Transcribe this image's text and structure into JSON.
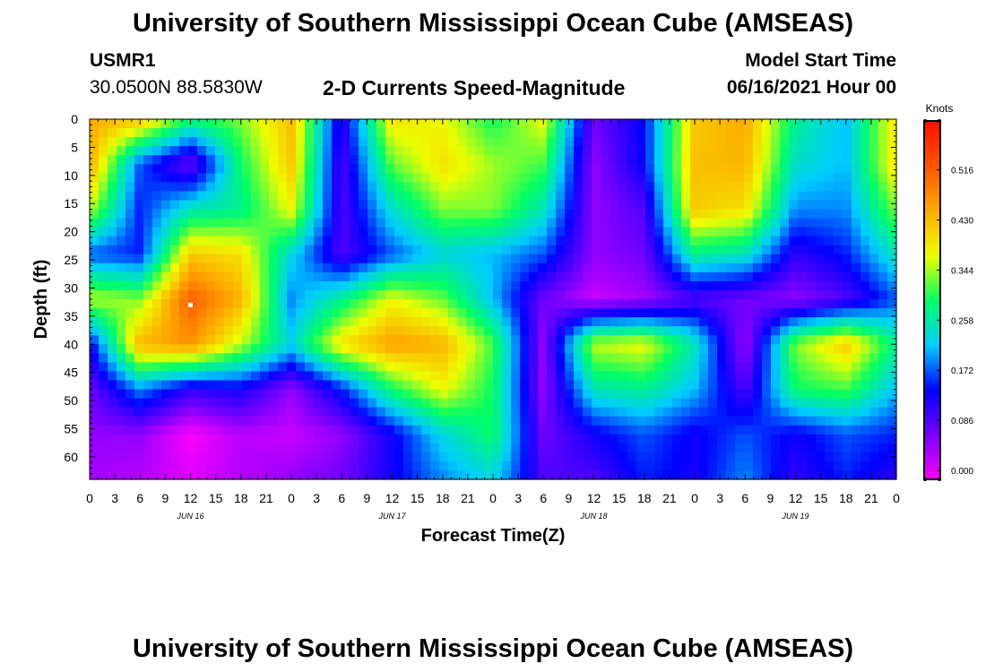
{
  "header": {
    "title": "University of Southern Mississippi Ocean Cube (AMSEAS)",
    "station_id": "USMR1",
    "coords": "30.0500N  88.5830W",
    "plot_title": "2-D Currents Speed-Magnitude",
    "model_start_label": "Model Start Time",
    "model_start_value": "06/16/2021 Hour 00"
  },
  "footer": {
    "title": "University of Southern Mississippi Ocean Cube (AMSEAS)"
  },
  "colors": {
    "colormap": [
      "#ff00ff",
      "#7700ff",
      "#0000ff",
      "#00ccff",
      "#00ff66",
      "#eeff00",
      "#ffaa00",
      "#ff5500",
      "#ff1100"
    ]
  },
  "chart_data": {
    "type": "heatmap",
    "xlabel": "Forecast Time(Z)",
    "ylabel": "Depth (ft)",
    "colorbar_label": "Knots",
    "xlim": [
      0,
      96
    ],
    "ylim": [
      0,
      64
    ],
    "x_ticks": [
      {
        "h": 0,
        "label": "0"
      },
      {
        "h": 3,
        "label": "3"
      },
      {
        "h": 6,
        "label": "6"
      },
      {
        "h": 9,
        "label": "9"
      },
      {
        "h": 12,
        "label": "12"
      },
      {
        "h": 15,
        "label": "15"
      },
      {
        "h": 18,
        "label": "18"
      },
      {
        "h": 21,
        "label": "21"
      },
      {
        "h": 24,
        "label": "0"
      },
      {
        "h": 27,
        "label": "3"
      },
      {
        "h": 30,
        "label": "6"
      },
      {
        "h": 33,
        "label": "9"
      },
      {
        "h": 36,
        "label": "12"
      },
      {
        "h": 39,
        "label": "15"
      },
      {
        "h": 42,
        "label": "18"
      },
      {
        "h": 45,
        "label": "21"
      },
      {
        "h": 48,
        "label": "0"
      },
      {
        "h": 51,
        "label": "3"
      },
      {
        "h": 54,
        "label": "6"
      },
      {
        "h": 57,
        "label": "9"
      },
      {
        "h": 60,
        "label": "12"
      },
      {
        "h": 63,
        "label": "15"
      },
      {
        "h": 66,
        "label": "18"
      },
      {
        "h": 69,
        "label": "21"
      },
      {
        "h": 72,
        "label": "0"
      },
      {
        "h": 75,
        "label": "3"
      },
      {
        "h": 78,
        "label": "6"
      },
      {
        "h": 81,
        "label": "9"
      },
      {
        "h": 84,
        "label": "12"
      },
      {
        "h": 87,
        "label": "15"
      },
      {
        "h": 90,
        "label": "18"
      },
      {
        "h": 93,
        "label": "21"
      },
      {
        "h": 96,
        "label": "0"
      }
    ],
    "date_labels": [
      {
        "h": 12,
        "label": "JUN 16"
      },
      {
        "h": 36,
        "label": "JUN 17"
      },
      {
        "h": 60,
        "label": "JUN 18"
      },
      {
        "h": 84,
        "label": "JUN 19"
      }
    ],
    "y_ticks": [
      0,
      5,
      10,
      15,
      20,
      25,
      30,
      35,
      40,
      45,
      50,
      55,
      60
    ],
    "colorbar_ticks": [
      {
        "v": 0.0,
        "label": "0.000"
      },
      {
        "v": 0.086,
        "label": "0.086"
      },
      {
        "v": 0.172,
        "label": "0.172"
      },
      {
        "v": 0.258,
        "label": "0.258"
      },
      {
        "v": 0.344,
        "label": "0.344"
      },
      {
        "v": 0.43,
        "label": "0.430"
      },
      {
        "v": 0.516,
        "label": "0.516"
      }
    ],
    "vmin": 0.0,
    "vmax": 0.6,
    "marker": {
      "h": 12,
      "depth": 33
    },
    "field_times": [
      0,
      6,
      12,
      18,
      24,
      30,
      36,
      42,
      48,
      54,
      60,
      66,
      72,
      78,
      84,
      90,
      96
    ],
    "field_depths": [
      0,
      8,
      16,
      24,
      32,
      40,
      48,
      56,
      64
    ],
    "values": [
      [
        0.45,
        0.43,
        0.3,
        0.34,
        0.43,
        0.12,
        0.4,
        0.38,
        0.3,
        0.38,
        0.08,
        0.15,
        0.42,
        0.45,
        0.28,
        0.22,
        0.4
      ],
      [
        0.45,
        0.18,
        0.08,
        0.3,
        0.42,
        0.1,
        0.33,
        0.4,
        0.35,
        0.32,
        0.06,
        0.15,
        0.43,
        0.44,
        0.25,
        0.22,
        0.4
      ],
      [
        0.36,
        0.16,
        0.26,
        0.28,
        0.38,
        0.1,
        0.25,
        0.34,
        0.34,
        0.26,
        0.06,
        0.1,
        0.42,
        0.4,
        0.2,
        0.2,
        0.34
      ],
      [
        0.18,
        0.16,
        0.42,
        0.4,
        0.24,
        0.1,
        0.18,
        0.24,
        0.22,
        0.18,
        0.06,
        0.08,
        0.28,
        0.26,
        0.12,
        0.16,
        0.26
      ],
      [
        0.36,
        0.34,
        0.52,
        0.44,
        0.2,
        0.28,
        0.38,
        0.33,
        0.22,
        0.08,
        0.03,
        0.05,
        0.1,
        0.08,
        0.06,
        0.1,
        0.18
      ],
      [
        0.14,
        0.44,
        0.47,
        0.36,
        0.24,
        0.4,
        0.46,
        0.44,
        0.32,
        0.06,
        0.36,
        0.38,
        0.26,
        0.05,
        0.34,
        0.42,
        0.28
      ],
      [
        0.08,
        0.2,
        0.12,
        0.14,
        0.06,
        0.16,
        0.3,
        0.38,
        0.3,
        0.06,
        0.26,
        0.28,
        0.22,
        0.1,
        0.3,
        0.32,
        0.22
      ],
      [
        0.06,
        0.06,
        0.0,
        0.04,
        0.03,
        0.06,
        0.14,
        0.24,
        0.3,
        0.08,
        0.14,
        0.18,
        0.14,
        0.18,
        0.14,
        0.18,
        0.16
      ],
      [
        0.05,
        0.04,
        0.02,
        0.04,
        0.06,
        0.08,
        0.14,
        0.2,
        0.24,
        0.1,
        0.1,
        0.16,
        0.14,
        0.2,
        0.12,
        0.16,
        0.12
      ]
    ]
  }
}
